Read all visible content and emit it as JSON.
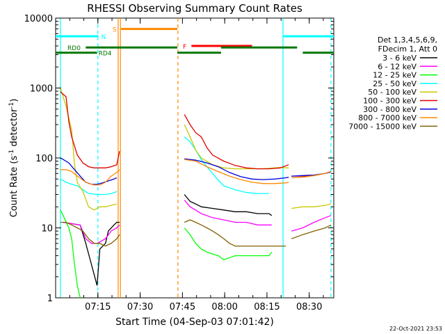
{
  "chart_data": {
    "type": "line",
    "title": "RHESSI Observing Summary Count Rates",
    "xlabel": "Start Time (04-Sep-03 07:01:42)",
    "ylabel": "Count Rate (s",
    "ylabel_sup1": "-1",
    "ylabel_mid": " detector",
    "ylabel_sup2": "-1",
    "ylabel_end": ")",
    "yscale": "log",
    "ylim": [
      1,
      10000
    ],
    "xlim_min": [
      -1.7,
      97
    ],
    "yticks": [
      {
        "value": 1,
        "label": "1"
      },
      {
        "value": 10,
        "label": "10"
      },
      {
        "value": 100,
        "label": "100"
      },
      {
        "value": 1000,
        "label": "1000"
      },
      {
        "value": 10000,
        "label": "10000"
      }
    ],
    "xticks": [
      {
        "min": 13.3,
        "label": "07:15"
      },
      {
        "min": 28.3,
        "label": "07:30"
      },
      {
        "min": 43.3,
        "label": "07:45"
      },
      {
        "min": 58.3,
        "label": "08:00"
      },
      {
        "min": 73.3,
        "label": "08:15"
      },
      {
        "min": 88.3,
        "label": "08:30"
      }
    ],
    "legend_header": [
      "Det 1,3,4,5,6,9,",
      "FDecim 1, Att 0"
    ],
    "legend_position": "right",
    "timestamp": "22-Oct-2021 23:53",
    "series": [
      {
        "name": "3 - 6 keV",
        "color": "#000000",
        "points": [
          [
            1,
            12
          ],
          [
            7,
            11
          ],
          [
            9,
            6
          ],
          [
            11,
            3
          ],
          [
            13,
            1.5
          ],
          [
            14,
            5
          ],
          [
            16,
            6
          ],
          [
            17,
            9
          ],
          [
            19,
            11
          ],
          [
            20,
            12
          ],
          [
            21,
            12
          ]
        ]
      },
      {
        "name": "6 - 12 keV",
        "color": "#ff00ff",
        "points": [
          [
            1,
            12
          ],
          [
            7,
            11
          ],
          [
            9,
            7
          ],
          [
            11,
            6
          ],
          [
            13,
            6
          ],
          [
            16,
            7
          ],
          [
            18,
            9
          ],
          [
            20,
            10
          ],
          [
            21,
            11
          ]
        ]
      },
      {
        "name": "12 - 25 keV",
        "color": "#00ff00",
        "points": [
          [
            0,
            18
          ],
          [
            1,
            15
          ],
          [
            3,
            10
          ],
          [
            4,
            7
          ],
          [
            5,
            3
          ],
          [
            6,
            1.5
          ],
          [
            7,
            1
          ]
        ]
      },
      {
        "name": "25 - 50 keV",
        "color": "#00ffff",
        "points": [
          [
            0,
            50
          ],
          [
            2,
            45
          ],
          [
            4,
            42
          ],
          [
            6,
            40
          ],
          [
            8,
            35
          ],
          [
            10,
            31
          ],
          [
            13,
            30
          ],
          [
            16,
            30
          ],
          [
            18,
            31
          ],
          [
            20,
            33
          ]
        ]
      },
      {
        "name": "50 - 100 keV",
        "color": "#c8c800",
        "points": [
          [
            0,
            1000
          ],
          [
            2,
            550
          ],
          [
            4,
            250
          ],
          [
            5,
            80
          ],
          [
            6,
            45
          ],
          [
            8,
            33
          ],
          [
            10,
            20
          ],
          [
            12,
            18
          ],
          [
            14,
            20
          ],
          [
            16,
            20
          ],
          [
            18,
            21
          ],
          [
            20,
            22
          ]
        ]
      },
      {
        "name": "100 - 300 keV",
        "color": "#dd0000",
        "points": [
          [
            0,
            880
          ],
          [
            2,
            750
          ],
          [
            3,
            330
          ],
          [
            4,
            200
          ],
          [
            6,
            110
          ],
          [
            8,
            85
          ],
          [
            10,
            75
          ],
          [
            12,
            72
          ],
          [
            14,
            72
          ],
          [
            16,
            72
          ],
          [
            18,
            75
          ],
          [
            20,
            80
          ],
          [
            21,
            125
          ]
        ]
      },
      {
        "name": "300 - 800 keV",
        "color": "#0000dd",
        "points": [
          [
            0,
            100
          ],
          [
            1,
            95
          ],
          [
            3,
            85
          ],
          [
            5,
            68
          ],
          [
            7,
            55
          ],
          [
            9,
            45
          ],
          [
            11,
            42
          ],
          [
            13,
            42
          ],
          [
            15,
            44
          ],
          [
            17,
            47
          ],
          [
            19,
            50
          ],
          [
            20,
            52
          ]
        ]
      },
      {
        "name": "800 - 7000 keV",
        "color": "#ff8800",
        "points": [
          [
            0,
            68
          ],
          [
            2,
            68
          ],
          [
            4,
            64
          ],
          [
            6,
            55
          ],
          [
            8,
            48
          ],
          [
            10,
            43
          ],
          [
            12,
            41
          ],
          [
            14,
            41
          ],
          [
            16,
            45
          ],
          [
            18,
            55
          ],
          [
            20,
            62
          ],
          [
            21,
            68
          ]
        ]
      },
      {
        "name": "7000 - 15000 keV",
        "color": "#806000",
        "points": [
          [
            0,
            12
          ],
          [
            2,
            12
          ],
          [
            4,
            11
          ],
          [
            6,
            10
          ],
          [
            8,
            9
          ],
          [
            10,
            7
          ],
          [
            12,
            6
          ],
          [
            14,
            6
          ],
          [
            16,
            5.5
          ],
          [
            18,
            6
          ],
          [
            20,
            7
          ],
          [
            21,
            8
          ]
        ]
      }
    ],
    "series_after_gap": [
      {
        "name": "3 - 6 keV",
        "color": "#000000",
        "points": [
          [
            44,
            30
          ],
          [
            46,
            24
          ],
          [
            48,
            22
          ],
          [
            50,
            20
          ],
          [
            54,
            19
          ],
          [
            58,
            18
          ],
          [
            62,
            17
          ],
          [
            66,
            17
          ],
          [
            70,
            16
          ],
          [
            74,
            16
          ],
          [
            75,
            15
          ]
        ]
      },
      {
        "name": "6 - 12 keV",
        "color": "#ff00ff",
        "points": [
          [
            44,
            25
          ],
          [
            46,
            20
          ],
          [
            48,
            18
          ],
          [
            50,
            16
          ],
          [
            54,
            14
          ],
          [
            58,
            13
          ],
          [
            62,
            12
          ],
          [
            66,
            12
          ],
          [
            70,
            11
          ],
          [
            74,
            11
          ],
          [
            75,
            11
          ]
        ],
        "tail": [
          [
            82,
            9
          ],
          [
            86,
            10
          ],
          [
            90,
            12
          ],
          [
            94,
            14
          ],
          [
            96,
            15
          ]
        ]
      },
      {
        "name": "12 - 25 keV",
        "color": "#00ff00",
        "points": [
          [
            44,
            10
          ],
          [
            46,
            8
          ],
          [
            48,
            6
          ],
          [
            50,
            5
          ],
          [
            52,
            4.5
          ],
          [
            56,
            4
          ],
          [
            58,
            3.5
          ],
          [
            62,
            4
          ],
          [
            66,
            4
          ],
          [
            70,
            4
          ],
          [
            74,
            4
          ],
          [
            75,
            4.5
          ]
        ]
      },
      {
        "name": "25 - 50 keV",
        "color": "#00ffff",
        "points": [
          [
            44,
            200
          ],
          [
            46,
            170
          ],
          [
            48,
            130
          ],
          [
            50,
            95
          ],
          [
            52,
            75
          ],
          [
            54,
            60
          ],
          [
            56,
            48
          ],
          [
            58,
            40
          ],
          [
            62,
            35
          ],
          [
            66,
            32
          ],
          [
            70,
            31
          ],
          [
            74,
            31
          ]
        ]
      },
      {
        "name": "50 - 100 keV",
        "color": "#c8c800",
        "points": [
          [
            44,
            300
          ],
          [
            46,
            200
          ],
          [
            48,
            130
          ],
          [
            50,
            100
          ],
          [
            54,
            80
          ],
          [
            58,
            72
          ],
          [
            62,
            70
          ],
          [
            66,
            70
          ],
          [
            70,
            70
          ],
          [
            74,
            71
          ],
          [
            78,
            73
          ],
          [
            81,
            72
          ]
        ],
        "tail": [
          [
            82,
            19
          ],
          [
            86,
            20
          ],
          [
            90,
            20
          ],
          [
            94,
            21
          ],
          [
            96,
            22
          ]
        ]
      },
      {
        "name": "100 - 300 keV",
        "color": "#dd0000",
        "points": [
          [
            44,
            420
          ],
          [
            46,
            300
          ],
          [
            48,
            230
          ],
          [
            50,
            200
          ],
          [
            52,
            140
          ],
          [
            54,
            110
          ],
          [
            58,
            90
          ],
          [
            62,
            78
          ],
          [
            66,
            72
          ],
          [
            70,
            70
          ],
          [
            74,
            70
          ],
          [
            78,
            72
          ],
          [
            81,
            80
          ]
        ],
        "tail": [
          [
            82,
            55
          ],
          [
            86,
            55
          ],
          [
            90,
            56
          ],
          [
            94,
            60
          ],
          [
            96,
            64
          ]
        ]
      },
      {
        "name": "300 - 800 keV",
        "color": "#0000dd",
        "points": [
          [
            44,
            97
          ],
          [
            48,
            93
          ],
          [
            52,
            85
          ],
          [
            56,
            75
          ],
          [
            60,
            62
          ],
          [
            64,
            54
          ],
          [
            68,
            50
          ],
          [
            72,
            49
          ],
          [
            76,
            50
          ],
          [
            80,
            52
          ],
          [
            81,
            53
          ]
        ],
        "tail": [
          [
            82,
            55
          ],
          [
            86,
            56
          ],
          [
            90,
            57
          ],
          [
            94,
            60
          ],
          [
            96,
            63
          ]
        ]
      },
      {
        "name": "800 - 7000 keV",
        "color": "#ff8800",
        "points": [
          [
            44,
            95
          ],
          [
            48,
            90
          ],
          [
            52,
            75
          ],
          [
            56,
            64
          ],
          [
            60,
            55
          ],
          [
            64,
            49
          ],
          [
            68,
            45
          ],
          [
            72,
            43
          ],
          [
            76,
            43
          ],
          [
            80,
            44
          ],
          [
            81,
            45
          ]
        ],
        "tail": [
          [
            82,
            52
          ],
          [
            86,
            53
          ],
          [
            90,
            56
          ],
          [
            94,
            60
          ],
          [
            96,
            64
          ]
        ]
      },
      {
        "name": "7000 - 15000 keV",
        "color": "#806000",
        "points": [
          [
            44,
            12
          ],
          [
            46,
            13
          ],
          [
            48,
            12
          ],
          [
            50,
            11
          ],
          [
            52,
            10
          ],
          [
            54,
            9
          ],
          [
            56,
            8
          ],
          [
            58,
            7
          ],
          [
            60,
            6
          ],
          [
            62,
            5.5
          ],
          [
            66,
            5.5
          ],
          [
            70,
            5.5
          ],
          [
            74,
            5.5
          ],
          [
            78,
            5.5
          ],
          [
            80,
            5.5
          ]
        ],
        "tail": [
          [
            82,
            7
          ],
          [
            86,
            8
          ],
          [
            90,
            9
          ],
          [
            94,
            10
          ],
          [
            96,
            11
          ]
        ]
      }
    ],
    "flag_bars": [
      {
        "label": "S",
        "color": "#ff8800",
        "y": 7000,
        "from": 21.5,
        "to": 41.5,
        "label_min": 18.5
      },
      {
        "label": "F",
        "color": "#ff0000",
        "y": 4000,
        "from": 46.5,
        "to": 68,
        "label_min": 43.5
      },
      {
        "label": "N",
        "color": "#00ffff",
        "y": 5500,
        "from": -1.7,
        "to": 13.5,
        "label_min": 14.5,
        "extra_from": 79,
        "extra_to": 97
      },
      {
        "label": "RD0",
        "color": "#007700",
        "y": 3800,
        "from": 9,
        "to": 41.5,
        "label_min": 2.5,
        "extra_from": 57,
        "extra_to": 84
      },
      {
        "label": "RD4",
        "color": "#007700",
        "y": 3200,
        "from": -1.7,
        "to": 13,
        "label_min": 13.5,
        "extra_from": 41.5,
        "extra_to": 57,
        "extra2_from": 86,
        "extra2_to": 97
      }
    ],
    "vlines": [
      {
        "min": 0,
        "color": "#00ffff",
        "style": "solid"
      },
      {
        "min": 13.3,
        "color": "#00ffff",
        "style": "dashed"
      },
      {
        "min": 20.5,
        "color": "#ff8800",
        "style": "solid"
      },
      {
        "min": 21.3,
        "color": "#ff8800",
        "style": "solid"
      },
      {
        "min": 41.7,
        "color": "#ff8800",
        "style": "dashed"
      },
      {
        "min": 79,
        "color": "#00ffff",
        "style": "solid"
      },
      {
        "min": 96,
        "color": "#00ffff",
        "style": "dashed"
      }
    ]
  }
}
